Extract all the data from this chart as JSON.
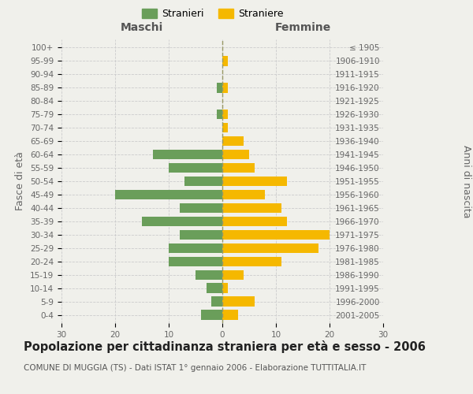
{
  "age_groups": [
    "0-4",
    "5-9",
    "10-14",
    "15-19",
    "20-24",
    "25-29",
    "30-34",
    "35-39",
    "40-44",
    "45-49",
    "50-54",
    "55-59",
    "60-64",
    "65-69",
    "70-74",
    "75-79",
    "80-84",
    "85-89",
    "90-94",
    "95-99",
    "100+"
  ],
  "birth_years": [
    "2001-2005",
    "1996-2000",
    "1991-1995",
    "1986-1990",
    "1981-1985",
    "1976-1980",
    "1971-1975",
    "1966-1970",
    "1961-1965",
    "1956-1960",
    "1951-1955",
    "1946-1950",
    "1941-1945",
    "1936-1940",
    "1931-1935",
    "1926-1930",
    "1921-1925",
    "1916-1920",
    "1911-1915",
    "1906-1910",
    "≤ 1905"
  ],
  "maschi": [
    4,
    2,
    3,
    5,
    10,
    10,
    8,
    15,
    8,
    20,
    7,
    10,
    13,
    0,
    0,
    1,
    0,
    1,
    0,
    0,
    0
  ],
  "femmine": [
    3,
    6,
    1,
    4,
    11,
    18,
    20,
    12,
    11,
    8,
    12,
    6,
    5,
    4,
    1,
    1,
    0,
    1,
    0,
    1,
    0
  ],
  "maschi_color": "#6a9e5a",
  "femmine_color": "#f5b800",
  "background_color": "#f0f0eb",
  "title": "Popolazione per cittadinanza straniera per età e sesso - 2006",
  "subtitle": "COMUNE DI MUGGIA (TS) - Dati ISTAT 1° gennaio 2006 - Elaborazione TUTTITALIA.IT",
  "ylabel_left": "Fasce di età",
  "ylabel_right": "Anni di nascita",
  "xlabel_left": "Maschi",
  "xlabel_right": "Femmine",
  "legend_stranieri": "Stranieri",
  "legend_straniere": "Straniere",
  "xlim": 30,
  "grid_color": "#cccccc",
  "bar_height": 0.75,
  "title_fontsize": 10.5,
  "subtitle_fontsize": 7.5,
  "axis_label_fontsize": 9,
  "tick_fontsize": 7.5,
  "legend_fontsize": 9
}
